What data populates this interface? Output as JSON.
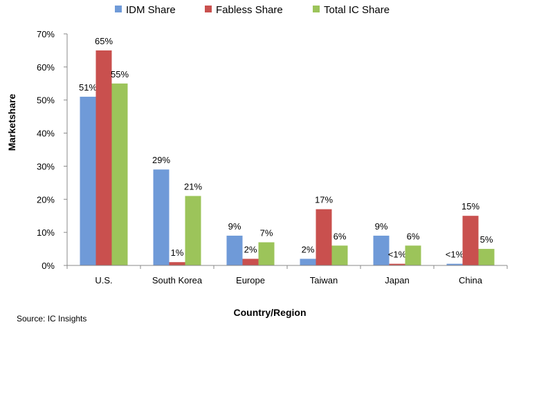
{
  "chart_data": {
    "type": "bar",
    "categories": [
      "U.S.",
      "South Korea",
      "Europe",
      "Taiwan",
      "Japan",
      "China"
    ],
    "series": [
      {
        "name": "IDM Share",
        "color": "#6f9ad8",
        "values": [
          51,
          29,
          9,
          2,
          9,
          0.5
        ],
        "labels": [
          "51%",
          "29%",
          "9%",
          "2%",
          "9%",
          "<1%"
        ]
      },
      {
        "name": "Fabless Share",
        "color": "#c9504e",
        "values": [
          65,
          1,
          2,
          17,
          0.5,
          15
        ],
        "labels": [
          "65%",
          "1%",
          "2%",
          "17%",
          "<1%",
          "15%"
        ]
      },
      {
        "name": "Total IC Share",
        "color": "#9cc45a",
        "values": [
          55,
          21,
          7,
          6,
          6,
          5
        ],
        "labels": [
          "55%",
          "21%",
          "7%",
          "6%",
          "6%",
          "5%"
        ]
      }
    ],
    "xlabel": "Country/Region",
    "ylabel": "Marketshare",
    "ylim": [
      0,
      70
    ],
    "yticks": [
      0,
      10,
      20,
      30,
      40,
      50,
      60,
      70
    ],
    "ytick_labels": [
      "0%",
      "10%",
      "20%",
      "30%",
      "40%",
      "50%",
      "60%",
      "70%"
    ],
    "legend_position": "top",
    "grid": false
  },
  "source_note": "Source: IC Insights"
}
